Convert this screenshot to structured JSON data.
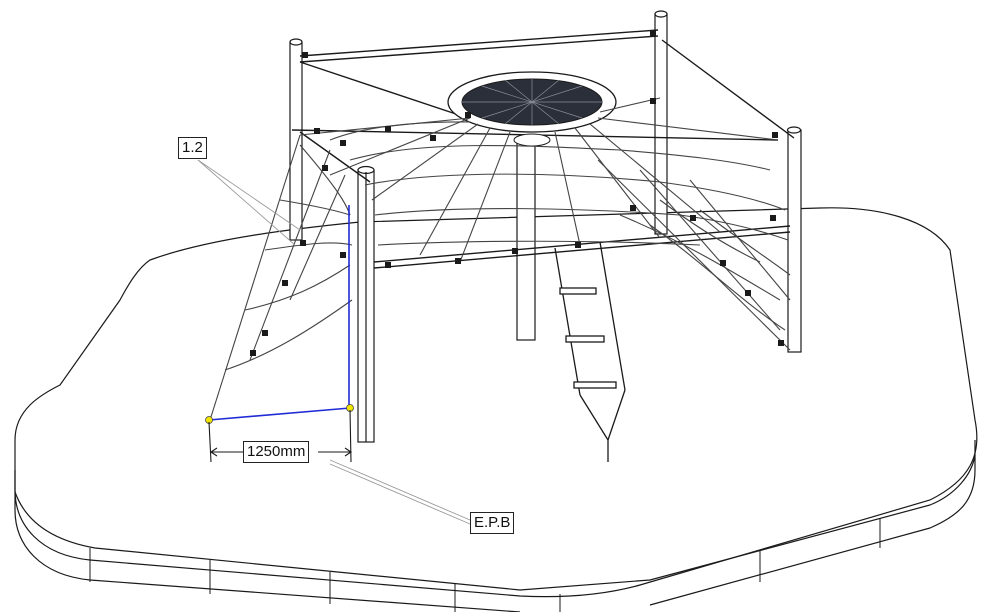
{
  "labels": {
    "ref_1_2": "1.2",
    "dimension": "1250mm",
    "epb": "E.P.B"
  },
  "colors": {
    "line": "#1a1a1a",
    "net": "#444444",
    "dimension_line": "#1f2bd6",
    "end_point": "#f2e600",
    "trampoline": "#2a2f3a"
  }
}
